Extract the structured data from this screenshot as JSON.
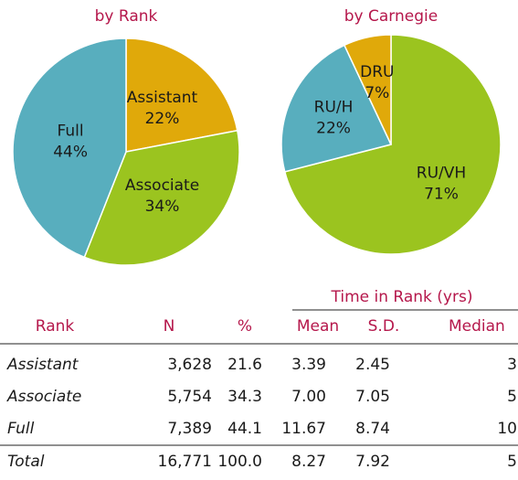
{
  "chart_data": [
    {
      "type": "pie",
      "title": "by Rank",
      "categories": [
        "Assistant",
        "Associate",
        "Full"
      ],
      "values": [
        22,
        34,
        44
      ],
      "value_labels": [
        "22%",
        "34%",
        "44%"
      ],
      "colors": [
        "#e0a90a",
        "#9bc41f",
        "#58aebe"
      ]
    },
    {
      "type": "pie",
      "title": "by Carnegie",
      "categories": [
        "RU/VH",
        "RU/H",
        "DRU"
      ],
      "values": [
        71,
        22,
        7
      ],
      "value_labels": [
        "71%",
        "22%",
        "7%"
      ],
      "colors": [
        "#9bc41f",
        "#58aebe",
        "#e0a90a"
      ]
    }
  ],
  "table": {
    "group_header": "Time in Rank (yrs)",
    "columns": [
      "Rank",
      "N",
      "%",
      "Mean",
      "S.D.",
      "Median"
    ],
    "rows": [
      [
        "Assistant",
        "3,628",
        "21.6",
        "3.39",
        "2.45",
        "3"
      ],
      [
        "Associate",
        "5,754",
        "34.3",
        "7.00",
        "7.05",
        "5"
      ],
      [
        "Full",
        "7,389",
        "44.1",
        "11.67",
        "8.74",
        "10"
      ],
      [
        "Total",
        "16,771",
        "100.0",
        "8.27",
        "7.92",
        "5"
      ]
    ]
  }
}
